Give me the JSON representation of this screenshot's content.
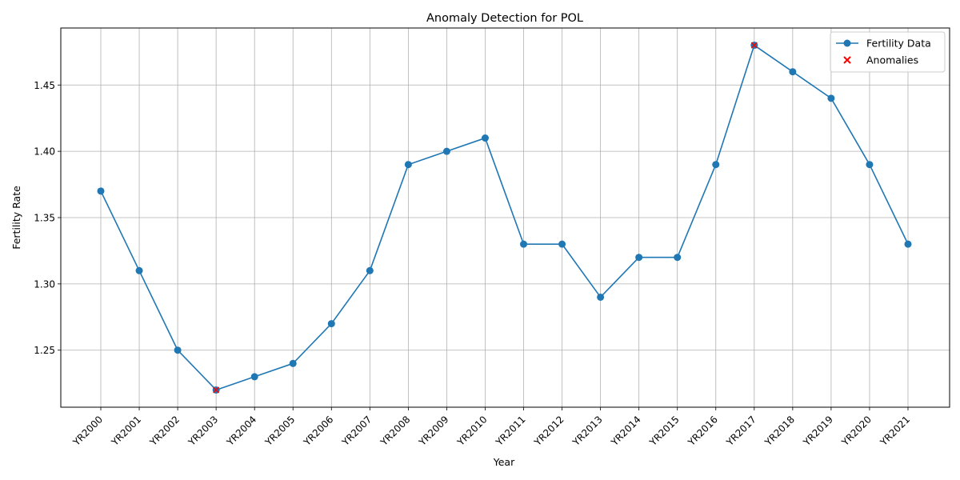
{
  "chart_data": {
    "type": "line",
    "title": "Anomaly Detection for POL",
    "xlabel": "Year",
    "ylabel": "Fertility Rate",
    "categories": [
      "YR2000",
      "YR2001",
      "YR2002",
      "YR2003",
      "YR2004",
      "YR2005",
      "YR2006",
      "YR2007",
      "YR2008",
      "YR2009",
      "YR2010",
      "YR2011",
      "YR2012",
      "YR2013",
      "YR2014",
      "YR2015",
      "YR2016",
      "YR2017",
      "YR2018",
      "YR2019",
      "YR2020",
      "YR2021"
    ],
    "series": [
      {
        "name": "Fertility Data",
        "color": "#1f77b4",
        "values": [
          1.37,
          1.31,
          1.25,
          1.22,
          1.23,
          1.24,
          1.27,
          1.31,
          1.39,
          1.4,
          1.41,
          1.33,
          1.33,
          1.29,
          1.32,
          1.32,
          1.39,
          1.48,
          1.46,
          1.44,
          1.39,
          1.33
        ]
      },
      {
        "name": "Anomalies",
        "color": "#ff0000",
        "marker": "x",
        "points": [
          {
            "category": "YR2003",
            "value": 1.22
          },
          {
            "category": "YR2017",
            "value": 1.48
          }
        ]
      }
    ],
    "yticks": [
      "1.25",
      "1.30",
      "1.35",
      "1.40",
      "1.45"
    ],
    "ylim": [
      1.207,
      1.493
    ],
    "grid": true,
    "legend_position": "top-right"
  }
}
